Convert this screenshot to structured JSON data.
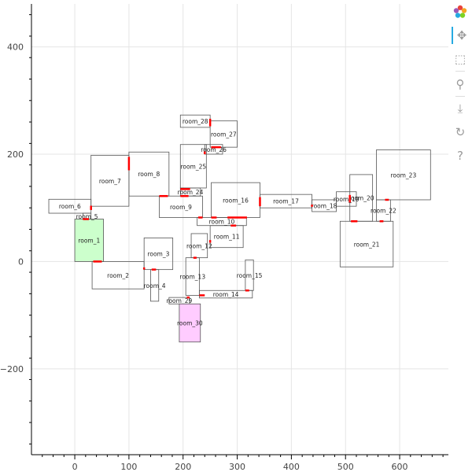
{
  "axes": {
    "xlim": [
      -80,
      690
    ],
    "ylim": [
      -360,
      480
    ],
    "xticks": [
      0,
      100,
      200,
      300,
      400,
      500,
      600
    ],
    "yticks": [
      -200,
      0,
      200,
      400
    ],
    "xtick_labels": [
      "0",
      "100",
      "200",
      "300",
      "400",
      "500",
      "600"
    ],
    "ytick_labels": [
      "−200",
      "0",
      "200",
      "400"
    ],
    "grid": true
  },
  "colors": {
    "room_stroke": "#555555",
    "door": "#ff0000",
    "room_1_fill": "#ccffcc",
    "room_30_fill": "#ffccff",
    "grid": "#e5e5e5"
  },
  "toolbar": {
    "items": [
      {
        "name": "bokeh-logo-icon",
        "icon": "logo"
      },
      {
        "name": "pan-tool-icon",
        "icon": "✥"
      },
      {
        "name": "box-zoom-tool-icon",
        "icon": "⬚"
      },
      {
        "name": "wheel-zoom-tool-icon",
        "icon": "⚲"
      },
      {
        "name": "save-tool-icon",
        "icon": "⤓"
      },
      {
        "name": "reset-tool-icon",
        "icon": "↻"
      },
      {
        "name": "help-tool-icon",
        "icon": "?"
      }
    ]
  },
  "chart_data": {
    "type": "floor-plan",
    "rooms": [
      {
        "label": "room_1",
        "x0": 0,
        "y0": 0,
        "x1": 53,
        "y1": 79,
        "fill": "#ccffcc"
      },
      {
        "label": "room_2",
        "x0": 32,
        "y0": -51,
        "x1": 128,
        "y1": 0,
        "fill": null
      },
      {
        "label": "room_3",
        "x0": 128,
        "y0": -15,
        "x1": 181,
        "y1": 44,
        "fill": null
      },
      {
        "label": "room_4",
        "x0": 140,
        "y0": -74,
        "x1": 155,
        "y1": -15,
        "fill": null
      },
      {
        "label": "room_5",
        "x0": 15,
        "y0": 79,
        "x1": 30,
        "y1": 90,
        "fill": null
      },
      {
        "label": "room_6",
        "x0": -48,
        "y0": 90,
        "x1": 30,
        "y1": 116,
        "fill": null
      },
      {
        "label": "room_7",
        "x0": 30,
        "y0": 103,
        "x1": 100,
        "y1": 198,
        "fill": null
      },
      {
        "label": "room_8",
        "x0": 100,
        "y0": 122,
        "x1": 174,
        "y1": 204,
        "fill": null
      },
      {
        "label": "room_9",
        "x0": 156,
        "y0": 82,
        "x1": 236,
        "y1": 122,
        "fill": null
      },
      {
        "label": "room_10",
        "x0": 226,
        "y0": 67,
        "x1": 317,
        "y1": 82,
        "fill": null
      },
      {
        "label": "room_11",
        "x0": 250,
        "y0": 26,
        "x1": 311,
        "y1": 67,
        "fill": null
      },
      {
        "label": "room_12",
        "x0": 215,
        "y0": 7,
        "x1": 245,
        "y1": 52,
        "fill": null
      },
      {
        "label": "room_13",
        "x0": 205,
        "y0": -63,
        "x1": 230,
        "y1": 7,
        "fill": null
      },
      {
        "label": "room_14",
        "x0": 230,
        "y0": -68,
        "x1": 328,
        "y1": -54,
        "fill": null
      },
      {
        "label": "room_15",
        "x0": 315,
        "y0": -54,
        "x1": 330,
        "y1": 3,
        "fill": null
      },
      {
        "label": "room_16",
        "x0": 252,
        "y0": 82,
        "x1": 342,
        "y1": 147,
        "fill": null
      },
      {
        "label": "room_17",
        "x0": 342,
        "y0": 100,
        "x1": 438,
        "y1": 125,
        "fill": null
      },
      {
        "label": "room_18",
        "x0": 438,
        "y0": 93,
        "x1": 483,
        "y1": 115,
        "fill": null
      },
      {
        "label": "room_19",
        "x0": 483,
        "y0": 103,
        "x1": 520,
        "y1": 130,
        "fill": null
      },
      {
        "label": "room_20",
        "x0": 508,
        "y0": 75,
        "x1": 550,
        "y1": 162,
        "fill": null
      },
      {
        "label": "room_21",
        "x0": 490,
        "y0": -10,
        "x1": 588,
        "y1": 75,
        "fill": null
      },
      {
        "label": "room_22",
        "x0": 557,
        "y0": 75,
        "x1": 583,
        "y1": 115,
        "fill": null
      },
      {
        "label": "room_23",
        "x0": 557,
        "y0": 115,
        "x1": 657,
        "y1": 208,
        "fill": null
      },
      {
        "label": "room_24",
        "x0": 195,
        "y0": 122,
        "x1": 232,
        "y1": 137,
        "fill": null
      },
      {
        "label": "room_25",
        "x0": 195,
        "y0": 137,
        "x1": 243,
        "y1": 218,
        "fill": null
      },
      {
        "label": "room_26",
        "x0": 240,
        "y0": 200,
        "x1": 273,
        "y1": 218,
        "fill": null
      },
      {
        "label": "room_27",
        "x0": 250,
        "y0": 213,
        "x1": 300,
        "y1": 262,
        "fill": null
      },
      {
        "label": "room_28",
        "x0": 195,
        "y0": 250,
        "x1": 250,
        "y1": 273,
        "fill": null
      },
      {
        "label": "room_29",
        "x0": 174,
        "y0": -79,
        "x1": 212,
        "y1": -67,
        "fill": null
      },
      {
        "label": "room_30",
        "x0": 193,
        "y0": -150,
        "x1": 232,
        "y1": -79,
        "fill": "#ffccff"
      }
    ],
    "doors": [
      {
        "x0": 30,
        "y0": 96,
        "x1": 30,
        "y1": 104
      },
      {
        "x0": 15,
        "y0": 79,
        "x1": 26,
        "y1": 79
      },
      {
        "x0": 34,
        "y0": 0,
        "x1": 50,
        "y1": 0
      },
      {
        "x0": 128,
        "y0": -15,
        "x1": 128,
        "y1": -11
      },
      {
        "x0": 142,
        "y0": -15,
        "x1": 150,
        "y1": -15
      },
      {
        "x0": 100,
        "y0": 170,
        "x1": 100,
        "y1": 195
      },
      {
        "x0": 156,
        "y0": 122,
        "x1": 172,
        "y1": 122
      },
      {
        "x0": 195,
        "y0": 135,
        "x1": 213,
        "y1": 135
      },
      {
        "x0": 195,
        "y0": 122,
        "x1": 210,
        "y1": 122
      },
      {
        "x0": 228,
        "y0": 82,
        "x1": 236,
        "y1": 82
      },
      {
        "x0": 252,
        "y0": 82,
        "x1": 262,
        "y1": 82
      },
      {
        "x0": 282,
        "y0": 82,
        "x1": 318,
        "y1": 82
      },
      {
        "x0": 288,
        "y0": 67,
        "x1": 298,
        "y1": 67
      },
      {
        "x0": 250,
        "y0": 35,
        "x1": 250,
        "y1": 40
      },
      {
        "x0": 219,
        "y0": 7,
        "x1": 225,
        "y1": 7
      },
      {
        "x0": 230,
        "y0": -63,
        "x1": 240,
        "y1": -63
      },
      {
        "x0": 315,
        "y0": -54,
        "x1": 322,
        "y1": -54
      },
      {
        "x0": 342,
        "y0": 103,
        "x1": 342,
        "y1": 120
      },
      {
        "x0": 438,
        "y0": 102,
        "x1": 438,
        "y1": 106
      },
      {
        "x0": 508,
        "y0": 110,
        "x1": 508,
        "y1": 124
      },
      {
        "x0": 510,
        "y0": 75,
        "x1": 522,
        "y1": 75
      },
      {
        "x0": 563,
        "y0": 75,
        "x1": 570,
        "y1": 75
      },
      {
        "x0": 573,
        "y0": 115,
        "x1": 580,
        "y1": 115
      },
      {
        "x0": 240,
        "y0": 200,
        "x1": 240,
        "y1": 205
      },
      {
        "x0": 252,
        "y0": 213,
        "x1": 270,
        "y1": 213
      },
      {
        "x0": 250,
        "y0": 252,
        "x1": 250,
        "y1": 266
      },
      {
        "x0": 207,
        "y0": -67,
        "x1": 212,
        "y1": -67
      }
    ]
  }
}
